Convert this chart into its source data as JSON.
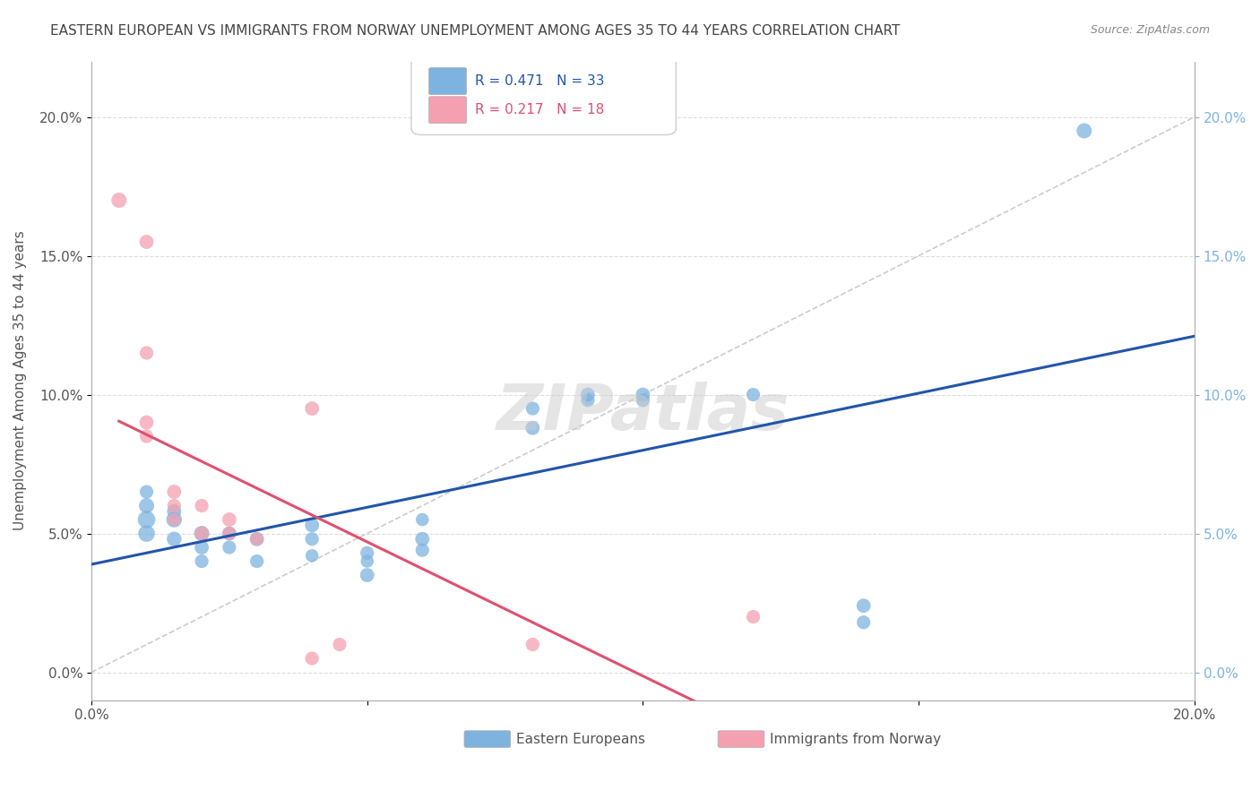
{
  "title": "EASTERN EUROPEAN VS IMMIGRANTS FROM NORWAY UNEMPLOYMENT AMONG AGES 35 TO 44 YEARS CORRELATION CHART",
  "source": "Source: ZipAtlas.com",
  "ylabel": "Unemployment Among Ages 35 to 44 years",
  "xlim": [
    0,
    0.2
  ],
  "ylim": [
    -0.01,
    0.22
  ],
  "yticks": [
    0.0,
    0.05,
    0.1,
    0.15,
    0.2
  ],
  "ytick_labels": [
    "0.0%",
    "5.0%",
    "10.0%",
    "15.0%",
    "20.0%"
  ],
  "xticks": [
    0.0,
    0.05,
    0.1,
    0.15,
    0.2
  ],
  "xtick_labels": [
    "0.0%",
    "",
    "",
    "",
    "20.0%"
  ],
  "blue_R": "R = 0.471",
  "blue_N": "N = 33",
  "pink_R": "R = 0.217",
  "pink_N": "N = 18",
  "blue_label": "Eastern Europeans",
  "pink_label": "Immigrants from Norway",
  "background_color": "#ffffff",
  "grid_color": "#dddddd",
  "blue_color": "#7eb3e0",
  "pink_color": "#f4a0b0",
  "blue_line_color": "#2255aa",
  "pink_line_color": "#e05070",
  "diagonal_color": "#cccccc",
  "watermark_color": "#cccccc",
  "title_color": "#444444",
  "blue_points": [
    [
      0.01,
      0.055
    ],
    [
      0.01,
      0.05
    ],
    [
      0.01,
      0.06
    ],
    [
      0.01,
      0.065
    ],
    [
      0.015,
      0.055
    ],
    [
      0.015,
      0.048
    ],
    [
      0.015,
      0.058
    ],
    [
      0.02,
      0.05
    ],
    [
      0.02,
      0.045
    ],
    [
      0.02,
      0.04
    ],
    [
      0.025,
      0.05
    ],
    [
      0.025,
      0.045
    ],
    [
      0.03,
      0.048
    ],
    [
      0.03,
      0.04
    ],
    [
      0.04,
      0.053
    ],
    [
      0.04,
      0.048
    ],
    [
      0.04,
      0.042
    ],
    [
      0.05,
      0.035
    ],
    [
      0.05,
      0.043
    ],
    [
      0.05,
      0.04
    ],
    [
      0.06,
      0.048
    ],
    [
      0.06,
      0.044
    ],
    [
      0.06,
      0.055
    ],
    [
      0.08,
      0.088
    ],
    [
      0.08,
      0.095
    ],
    [
      0.09,
      0.1
    ],
    [
      0.09,
      0.098
    ],
    [
      0.1,
      0.1
    ],
    [
      0.1,
      0.098
    ],
    [
      0.12,
      0.1
    ],
    [
      0.14,
      0.024
    ],
    [
      0.14,
      0.018
    ],
    [
      0.18,
      0.195
    ]
  ],
  "pink_points": [
    [
      0.005,
      0.17
    ],
    [
      0.01,
      0.155
    ],
    [
      0.01,
      0.115
    ],
    [
      0.01,
      0.09
    ],
    [
      0.01,
      0.085
    ],
    [
      0.015,
      0.065
    ],
    [
      0.015,
      0.06
    ],
    [
      0.015,
      0.055
    ],
    [
      0.02,
      0.05
    ],
    [
      0.02,
      0.06
    ],
    [
      0.025,
      0.055
    ],
    [
      0.025,
      0.05
    ],
    [
      0.03,
      0.048
    ],
    [
      0.04,
      0.095
    ],
    [
      0.04,
      0.005
    ],
    [
      0.045,
      0.01
    ],
    [
      0.08,
      0.01
    ],
    [
      0.12,
      0.02
    ]
  ],
  "blue_sizes": [
    200,
    180,
    150,
    120,
    160,
    140,
    130,
    150,
    130,
    120,
    130,
    120,
    130,
    120,
    130,
    120,
    110,
    130,
    120,
    110,
    130,
    120,
    110,
    130,
    120,
    130,
    120,
    130,
    120,
    120,
    130,
    120,
    150
  ],
  "pink_sizes": [
    150,
    130,
    120,
    130,
    120,
    130,
    120,
    110,
    130,
    120,
    130,
    120,
    120,
    130,
    120,
    120,
    120,
    120
  ]
}
